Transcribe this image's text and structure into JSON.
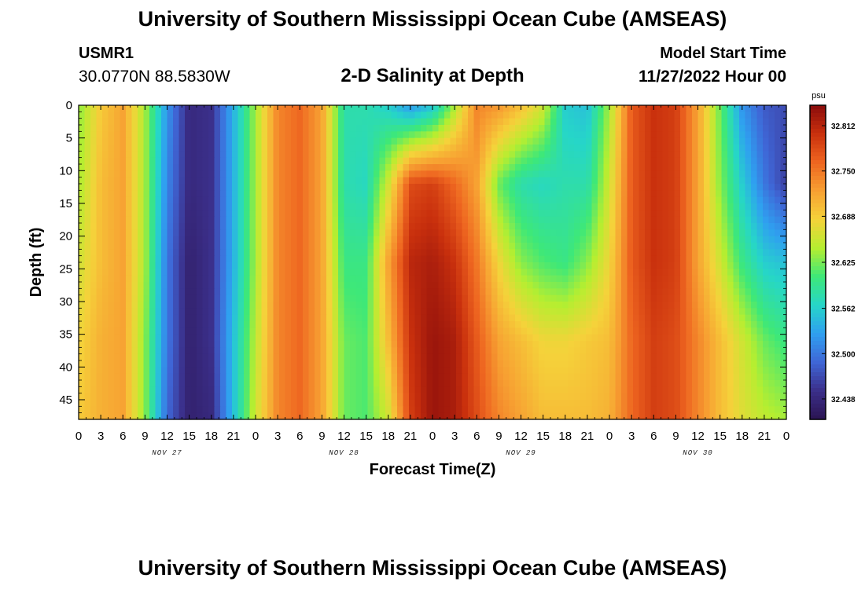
{
  "header": {
    "main_title": "University of Southern Mississippi Ocean Cube (AMSEAS)",
    "station_id": "USMR1",
    "station_coords": "30.0770N  88.5830W",
    "plot_title": "2-D Salinity at Depth",
    "start_label": "Model Start Time",
    "start_value": "11/27/2022 Hour 00"
  },
  "footer": {
    "repeated_title": "University of Southern Mississippi Ocean Cube (AMSEAS)"
  },
  "colors": {
    "ramp": [
      "#2b1452",
      "#3b2f8a",
      "#3f66d6",
      "#2fa0f0",
      "#26d6c8",
      "#3ee878",
      "#b6ee30",
      "#f5d23a",
      "#f7a032",
      "#ee6520",
      "#c9300d",
      "#8a0c0c"
    ]
  },
  "chart_data": {
    "type": "heatmap",
    "title": "2-D Salinity at Depth",
    "xlabel": "Forecast Time(Z)",
    "ylabel": "Depth (ft)",
    "x_hours": [
      0,
      3,
      6,
      9,
      12,
      15,
      18,
      21,
      24,
      27,
      30,
      33,
      36,
      39,
      42,
      45,
      48,
      51,
      54,
      57,
      60,
      63,
      66,
      69,
      72,
      75,
      78,
      81,
      84,
      87,
      90,
      93,
      96
    ],
    "x_tick_labels": [
      "0",
      "3",
      "6",
      "9",
      "12",
      "15",
      "18",
      "21",
      "0",
      "3",
      "6",
      "9",
      "12",
      "15",
      "18",
      "21",
      "0",
      "3",
      "6",
      "9",
      "12",
      "15",
      "18",
      "21",
      "0",
      "3",
      "6",
      "9",
      "12",
      "15",
      "18",
      "21",
      "0"
    ],
    "day_labels": [
      {
        "hour": 12,
        "label": "NOV 27"
      },
      {
        "hour": 36,
        "label": "NOV 28"
      },
      {
        "hour": 60,
        "label": "NOV 29"
      },
      {
        "hour": 84,
        "label": "NOV 30"
      }
    ],
    "xlim": [
      0,
      96
    ],
    "y_ticks": [
      0,
      5,
      10,
      15,
      20,
      25,
      30,
      35,
      40,
      45
    ],
    "ylim": [
      0,
      48
    ],
    "depths": [
      0,
      12,
      24,
      36,
      48
    ],
    "salinity_surface": [
      32.63,
      32.69,
      32.72,
      32.64,
      32.52,
      32.44,
      32.45,
      32.54,
      32.64,
      32.74,
      32.76,
      32.72,
      32.58,
      32.58,
      32.56,
      32.52,
      32.55,
      32.64,
      32.74,
      32.73,
      32.7,
      32.66,
      32.56,
      32.55,
      32.64,
      32.77,
      32.8,
      32.79,
      32.72,
      32.62,
      32.52,
      32.48,
      32.47
    ],
    "salinity_grid": [
      [
        32.63,
        32.69,
        32.72,
        32.64,
        32.52,
        32.44,
        32.45,
        32.54,
        32.64,
        32.74,
        32.76,
        32.72,
        32.58,
        32.58,
        32.56,
        32.52,
        32.55,
        32.64,
        32.74,
        32.73,
        32.7,
        32.66,
        32.56,
        32.55,
        32.64,
        32.77,
        32.8,
        32.79,
        32.72,
        32.62,
        32.52,
        32.48,
        32.47
      ],
      [
        32.64,
        32.7,
        32.72,
        32.64,
        32.51,
        32.44,
        32.45,
        32.54,
        32.64,
        32.74,
        32.76,
        32.72,
        32.58,
        32.57,
        32.66,
        32.78,
        32.79,
        32.76,
        32.72,
        32.62,
        32.58,
        32.57,
        32.58,
        32.58,
        32.66,
        32.77,
        32.8,
        32.79,
        32.72,
        32.63,
        32.56,
        32.5,
        32.46
      ],
      [
        32.66,
        32.7,
        32.72,
        32.64,
        32.5,
        32.43,
        32.45,
        32.54,
        32.64,
        32.74,
        32.76,
        32.72,
        32.6,
        32.6,
        32.72,
        32.81,
        32.82,
        32.8,
        32.75,
        32.68,
        32.63,
        32.61,
        32.6,
        32.63,
        32.68,
        32.77,
        32.8,
        32.79,
        32.72,
        32.66,
        32.6,
        32.56,
        32.55
      ],
      [
        32.68,
        32.71,
        32.72,
        32.63,
        32.5,
        32.43,
        32.45,
        32.55,
        32.65,
        32.74,
        32.76,
        32.72,
        32.62,
        32.61,
        32.7,
        32.8,
        32.83,
        32.82,
        32.77,
        32.72,
        32.7,
        32.68,
        32.68,
        32.69,
        32.7,
        32.76,
        32.79,
        32.78,
        32.74,
        32.7,
        32.66,
        32.62,
        32.6
      ],
      [
        32.69,
        32.71,
        32.72,
        32.63,
        32.49,
        32.43,
        32.44,
        32.55,
        32.66,
        32.74,
        32.76,
        32.72,
        32.62,
        32.61,
        32.66,
        32.79,
        32.83,
        32.82,
        32.78,
        32.74,
        32.72,
        32.7,
        32.7,
        32.7,
        32.71,
        32.76,
        32.79,
        32.78,
        32.74,
        32.7,
        32.67,
        32.65,
        32.64
      ]
    ],
    "colorbar": {
      "unit": "psu",
      "labels": [
        "32.438",
        "32.500",
        "32.562",
        "32.625",
        "32.688",
        "32.750",
        "32.812"
      ],
      "range": [
        32.41,
        32.84
      ]
    }
  }
}
